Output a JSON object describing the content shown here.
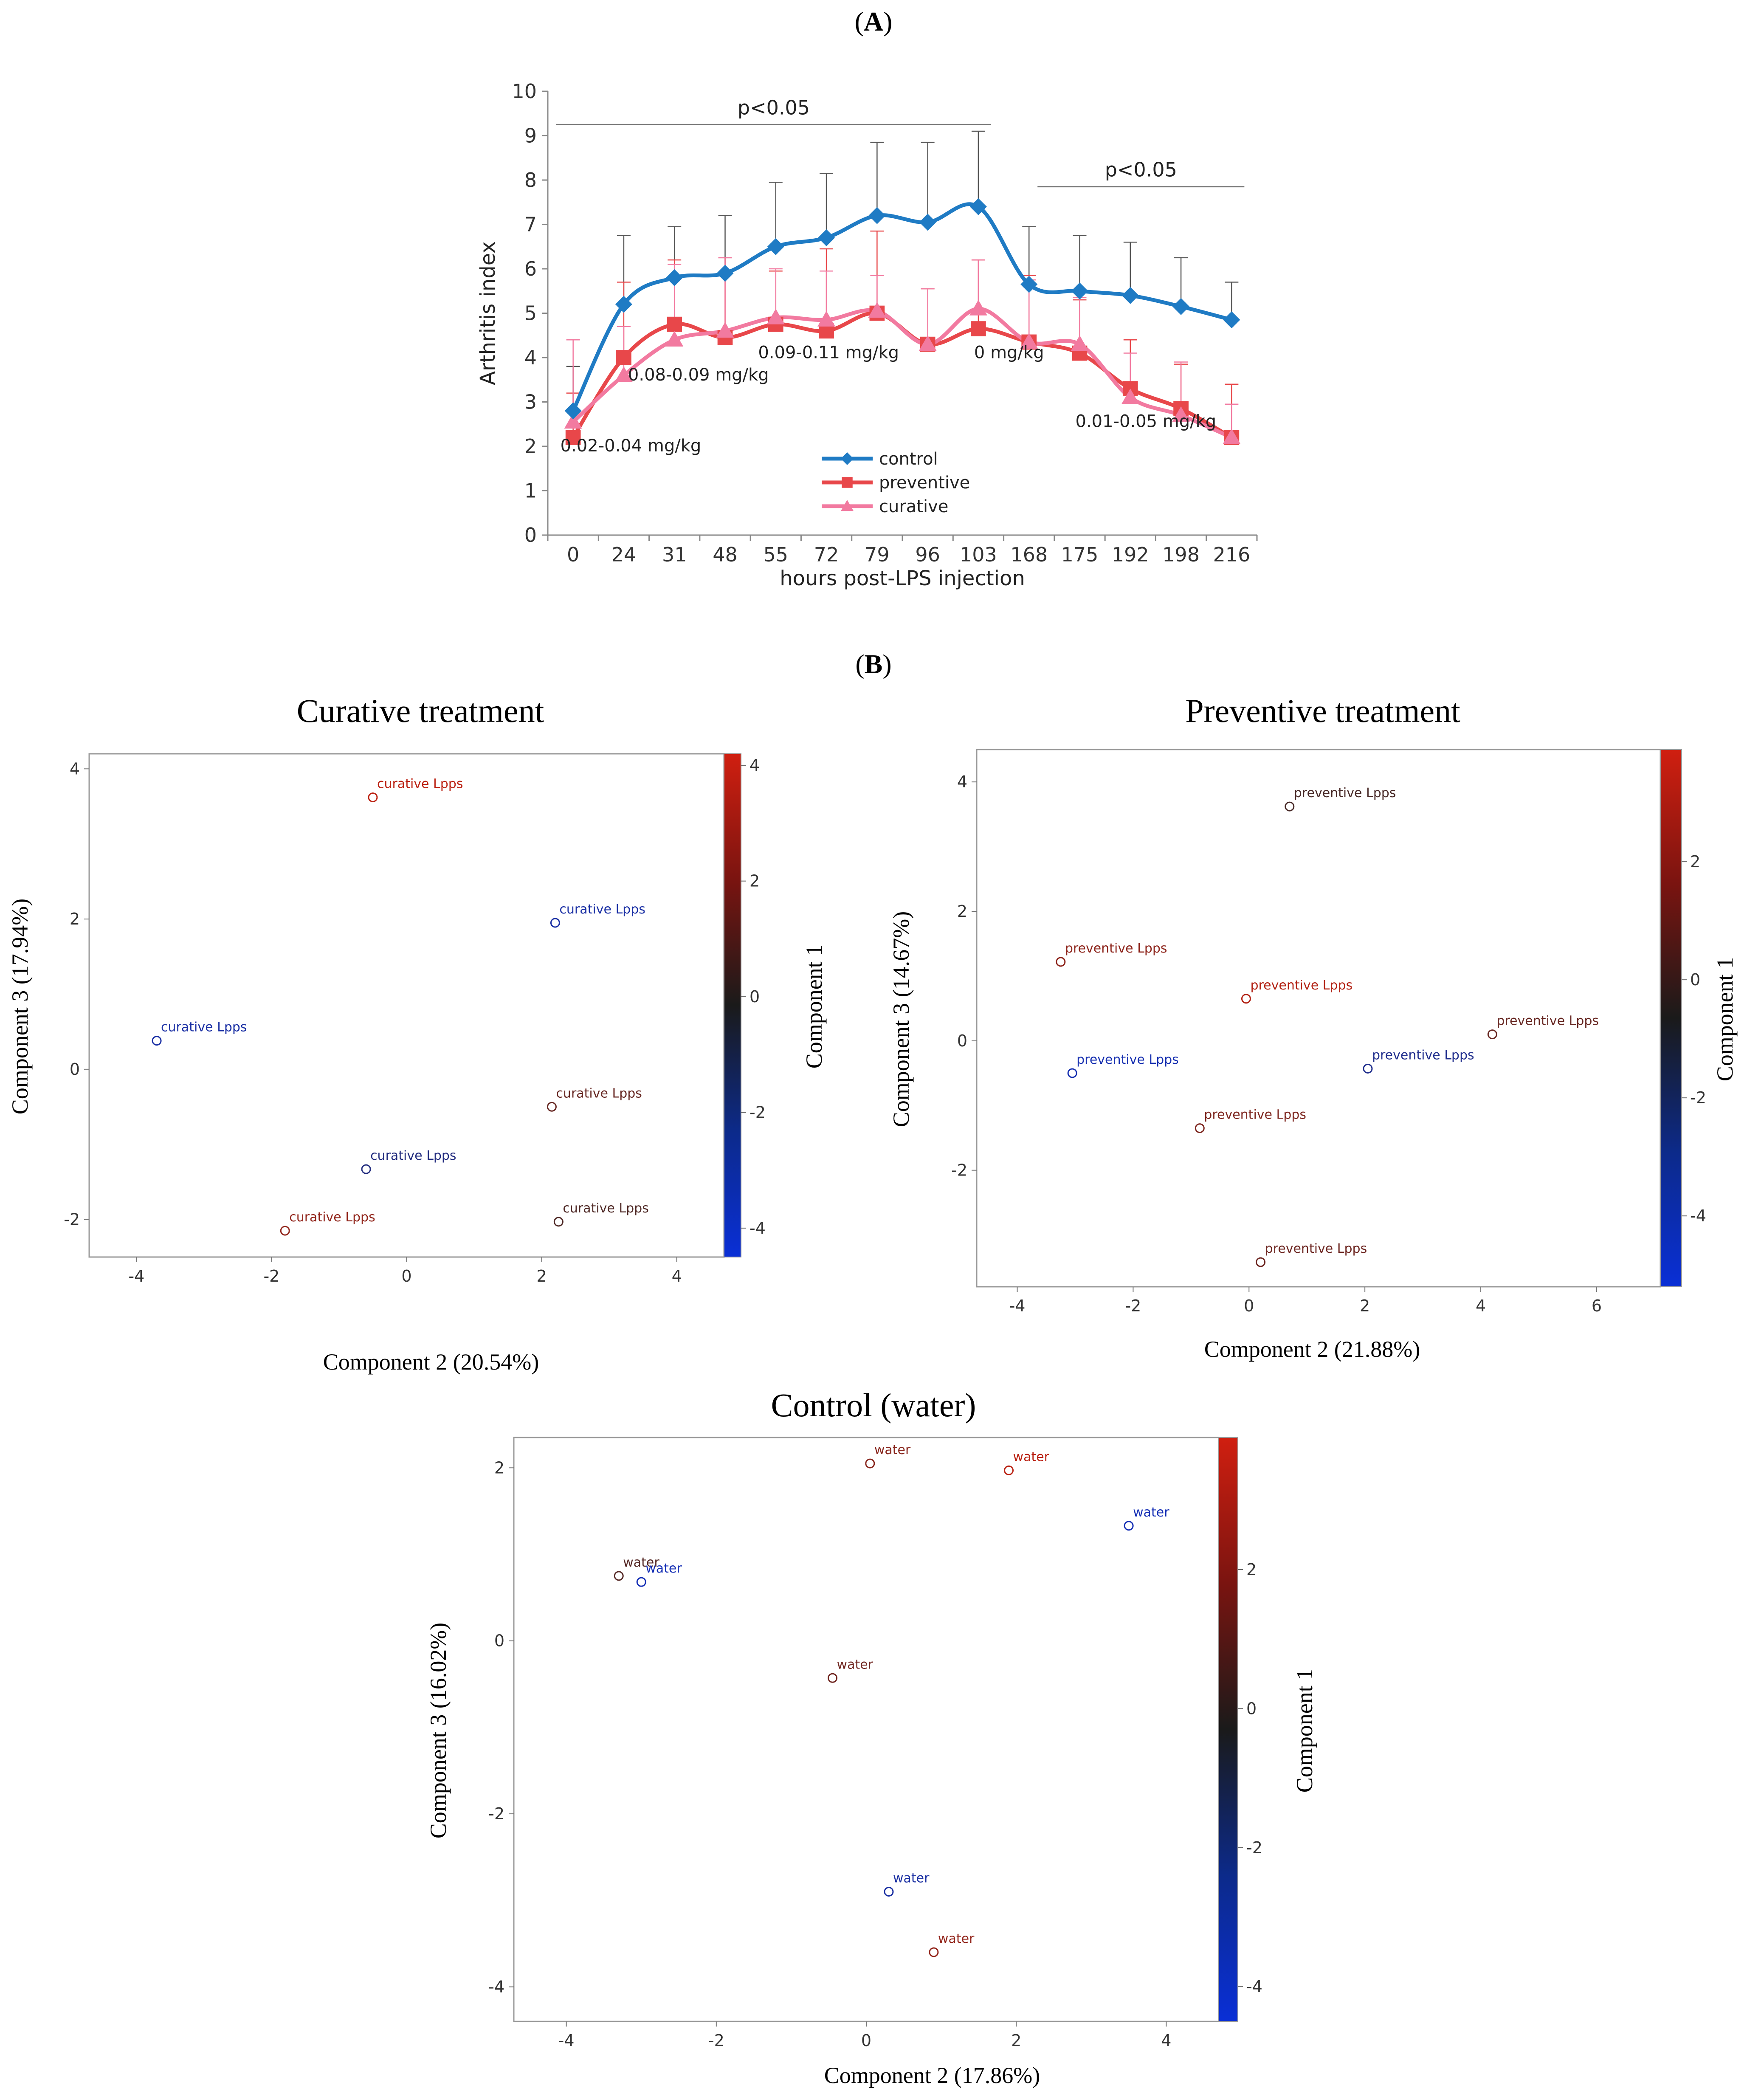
{
  "panel_labels": [
    "A",
    "B"
  ],
  "chart_data": [
    {
      "type": "line",
      "xlabel": "hours post-LPS injection",
      "ylabel": "Arthritis index",
      "ylim": [
        0,
        10
      ],
      "yticks": [
        0,
        1,
        2,
        3,
        4,
        5,
        6,
        7,
        8,
        9,
        10
      ],
      "categories": [
        "0",
        "24",
        "31",
        "48",
        "55",
        "72",
        "79",
        "96",
        "103",
        "168",
        "175",
        "192",
        "198",
        "216"
      ],
      "grid": false,
      "legend": "inside-bottom-center",
      "series": [
        {
          "name": "control",
          "color": "#1f7bc4",
          "marker": "diamond",
          "values": [
            2.8,
            5.2,
            5.8,
            5.9,
            6.5,
            6.7,
            7.2,
            7.05,
            7.4,
            5.65,
            5.5,
            5.4,
            5.15,
            4.85
          ],
          "error": [
            1.0,
            1.55,
            1.15,
            1.3,
            1.45,
            1.45,
            1.65,
            1.8,
            1.7,
            1.3,
            1.25,
            1.2,
            1.1,
            0.85
          ],
          "error_color": "#555555"
        },
        {
          "name": "preventive",
          "color": "#e8474a",
          "marker": "square",
          "values": [
            2.2,
            4.0,
            4.75,
            4.45,
            4.75,
            4.6,
            5.0,
            4.3,
            4.65,
            4.35,
            4.1,
            3.3,
            2.85,
            2.2
          ],
          "error": [
            1.0,
            1.7,
            1.45,
            1.8,
            1.2,
            1.85,
            1.85,
            1.25,
            1.55,
            1.5,
            1.2,
            1.1,
            1.0,
            1.2
          ],
          "error_color": "#e8474a"
        },
        {
          "name": "curative",
          "color": "#f27aa0",
          "marker": "triangle",
          "values": [
            2.55,
            3.6,
            4.4,
            4.6,
            4.9,
            4.85,
            5.05,
            4.3,
            5.1,
            4.35,
            4.3,
            3.1,
            2.7,
            2.2
          ],
          "error": [
            1.85,
            1.1,
            1.7,
            1.65,
            1.1,
            1.1,
            0.8,
            1.25,
            1.1,
            1.4,
            1.05,
            1.0,
            1.2,
            0.75
          ],
          "error_color": "#f27aa0"
        }
      ],
      "annotations": [
        {
          "text": "0.02-0.04 mg/kg",
          "x": "0",
          "y": 2.0
        },
        {
          "text": "0.08-0.09 mg/kg",
          "x": "24",
          "y": 3.6
        },
        {
          "text": "0.09-0.11 mg/kg",
          "x": "79",
          "y": 4.1
        },
        {
          "text": "0 mg/kg",
          "x": "103",
          "y": 4.1
        },
        {
          "text": "0.01-0.05  mg/kg",
          "x": "175",
          "y": 2.55
        }
      ],
      "significance": [
        {
          "text": "p<0.05",
          "from": "0",
          "to": "103",
          "y": 9.25
        },
        {
          "text": "p<0.05",
          "from": "168",
          "to": "216",
          "y": 7.85
        }
      ]
    },
    {
      "type": "scatter",
      "title": "Curative treatment",
      "xlabel": "Component 2 (20.54%)",
      "ylabel": "Component 3 (17.94%)",
      "colorbar_label": "Component 1",
      "xlim": [
        -4.7,
        4.7
      ],
      "ylim": [
        -2.5,
        4.2
      ],
      "xticks": [
        -4,
        -2,
        0,
        2,
        4
      ],
      "yticks": [
        -2,
        0,
        2,
        4
      ],
      "colorbar_range": [
        -4.5,
        4.2
      ],
      "colorbar_ticks": [
        -4,
        -2,
        0,
        2,
        4
      ],
      "points": [
        {
          "x": -0.5,
          "y": 3.62,
          "c": 3.8,
          "label": "curative Lpps"
        },
        {
          "x": 2.2,
          "y": 1.95,
          "c": -3.5,
          "label": "curative Lpps"
        },
        {
          "x": -3.7,
          "y": 0.38,
          "c": -3.5,
          "label": "curative Lpps"
        },
        {
          "x": 2.15,
          "y": -0.5,
          "c": 1.2,
          "label": "curative Lpps"
        },
        {
          "x": -0.6,
          "y": -1.33,
          "c": -2.5,
          "label": "curative Lpps"
        },
        {
          "x": -1.8,
          "y": -2.15,
          "c": 2.5,
          "label": "curative Lpps"
        },
        {
          "x": 2.25,
          "y": -2.03,
          "c": 0.5,
          "label": "curative Lpps"
        }
      ]
    },
    {
      "type": "scatter",
      "title": "Preventive treatment",
      "xlabel": "Component 2 (21.88%)",
      "ylabel": "Component 3 (14.67%)",
      "colorbar_label": "Component 1",
      "xlim": [
        -4.7,
        7.1
      ],
      "ylim": [
        -3.8,
        4.5
      ],
      "xticks": [
        -4,
        -2,
        0,
        2,
        4,
        6
      ],
      "yticks": [
        -2,
        0,
        2,
        4
      ],
      "colorbar_range": [
        -5.2,
        3.9
      ],
      "colorbar_ticks": [
        -4,
        -2,
        0,
        2
      ],
      "points": [
        {
          "x": 0.7,
          "y": 3.62,
          "c": -0.2,
          "label": "preventive Lpps"
        },
        {
          "x": -3.25,
          "y": 1.22,
          "c": 2.0,
          "label": "preventive Lpps"
        },
        {
          "x": -0.05,
          "y": 0.65,
          "c": 3.2,
          "label": "preventive Lpps"
        },
        {
          "x": 4.2,
          "y": 0.1,
          "c": 0.8,
          "label": "preventive Lpps"
        },
        {
          "x": -3.05,
          "y": -0.5,
          "c": -4.5,
          "label": "preventive Lpps"
        },
        {
          "x": 2.05,
          "y": -0.43,
          "c": -3.5,
          "label": "preventive Lpps"
        },
        {
          "x": -0.85,
          "y": -1.35,
          "c": 1.5,
          "label": "preventive Lpps"
        },
        {
          "x": 0.2,
          "y": -3.42,
          "c": 1.0,
          "label": "preventive Lpps"
        }
      ]
    },
    {
      "type": "scatter",
      "title": "Control (water)",
      "xlabel": "Component 2 (17.86%)",
      "ylabel": "Component 3 (16.02%)",
      "colorbar_label": "Component 1",
      "xlim": [
        -4.7,
        4.7
      ],
      "ylim": [
        -4.4,
        2.35
      ],
      "xticks": [
        -4,
        -2,
        0,
        2,
        4
      ],
      "yticks": [
        -4,
        -2,
        0,
        2
      ],
      "colorbar_range": [
        -4.5,
        3.9
      ],
      "colorbar_ticks": [
        -4,
        -2,
        0,
        2
      ],
      "points": [
        {
          "x": 0.05,
          "y": 2.05,
          "c": 2.0,
          "label": "water"
        },
        {
          "x": 1.9,
          "y": 1.97,
          "c": 3.5,
          "label": "water"
        },
        {
          "x": 3.5,
          "y": 1.33,
          "c": -4.0,
          "label": "water"
        },
        {
          "x": -3.3,
          "y": 0.75,
          "c": 0.5,
          "label": "water"
        },
        {
          "x": -3.0,
          "y": 0.68,
          "c": -4.0,
          "label": "water"
        },
        {
          "x": -0.45,
          "y": -0.43,
          "c": 1.3,
          "label": "water"
        },
        {
          "x": 0.3,
          "y": -2.9,
          "c": -3.5,
          "label": "water"
        },
        {
          "x": 0.9,
          "y": -3.6,
          "c": 2.3,
          "label": "water"
        }
      ]
    }
  ]
}
